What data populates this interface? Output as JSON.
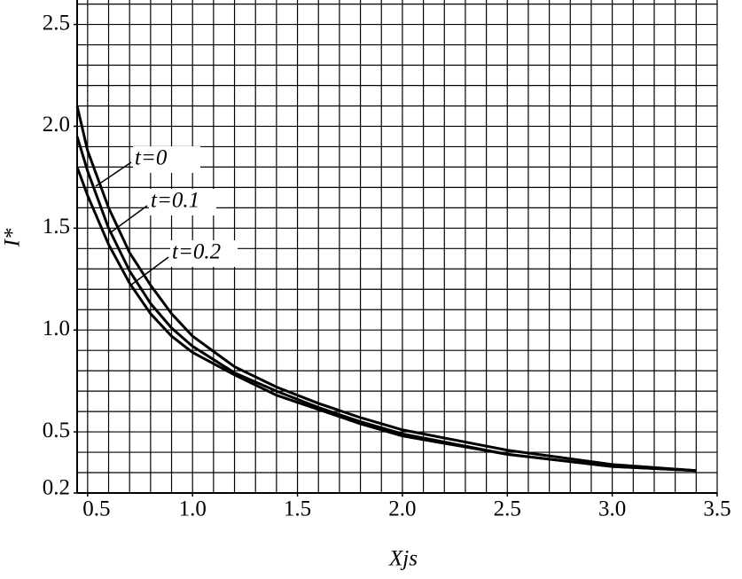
{
  "chart_data": {
    "type": "line",
    "xlabel": "Xjs",
    "ylabel": "I*",
    "x": [
      0.45,
      0.5,
      0.6,
      0.7,
      0.8,
      0.9,
      1.0,
      1.2,
      1.4,
      1.6,
      1.8,
      2.0,
      2.5,
      3.0,
      3.4
    ],
    "series": [
      {
        "name": "t=0",
        "color": "#000000",
        "values": [
          2.1,
          1.88,
          1.6,
          1.38,
          1.22,
          1.08,
          0.97,
          0.82,
          0.72,
          0.64,
          0.57,
          0.51,
          0.41,
          0.34,
          0.31
        ]
      },
      {
        "name": "t=0.1",
        "color": "#000000",
        "values": [
          1.95,
          1.78,
          1.5,
          1.29,
          1.13,
          1.01,
          0.92,
          0.79,
          0.7,
          0.62,
          0.55,
          0.49,
          0.39,
          0.33,
          0.31
        ]
      },
      {
        "name": "t=0.2",
        "color": "#000000",
        "values": [
          1.8,
          1.66,
          1.42,
          1.23,
          1.08,
          0.97,
          0.89,
          0.78,
          0.68,
          0.61,
          0.54,
          0.48,
          0.39,
          0.33,
          0.31
        ]
      }
    ],
    "xlim": [
      0.45,
      3.5
    ],
    "ylim": [
      0.2,
      2.62
    ],
    "xticks": [
      0.5,
      {
        "value": 1,
        "label": "1.0"
      },
      1.5,
      {
        "value": 2,
        "label": "2.0"
      },
      2.5,
      {
        "value": 3,
        "label": "3.0"
      },
      3.5
    ],
    "yticks": [
      0.2,
      0.5,
      {
        "value": 1,
        "label": "1.0"
      },
      1.5,
      {
        "value": 2,
        "label": "2.0"
      },
      2.5
    ],
    "grid": true,
    "xgrid": [
      0.5,
      0.6,
      0.7,
      0.8,
      0.9,
      1.0,
      1.1,
      1.2,
      1.3,
      1.4,
      1.5,
      1.6,
      1.7,
      1.8,
      1.9,
      2.0,
      2.1,
      2.2,
      2.3,
      2.4,
      2.5,
      2.6,
      2.7,
      2.8,
      2.9,
      3.0,
      3.1,
      3.2,
      3.3,
      3.4,
      3.5
    ],
    "ygrid": [
      0.3,
      0.4,
      0.5,
      0.6,
      0.7,
      0.8,
      0.9,
      1.0,
      1.1,
      1.2,
      1.3,
      1.4,
      1.5,
      1.6,
      1.7,
      1.8,
      1.9,
      2.0,
      2.1,
      2.2,
      2.3,
      2.4,
      2.5,
      2.6
    ]
  }
}
